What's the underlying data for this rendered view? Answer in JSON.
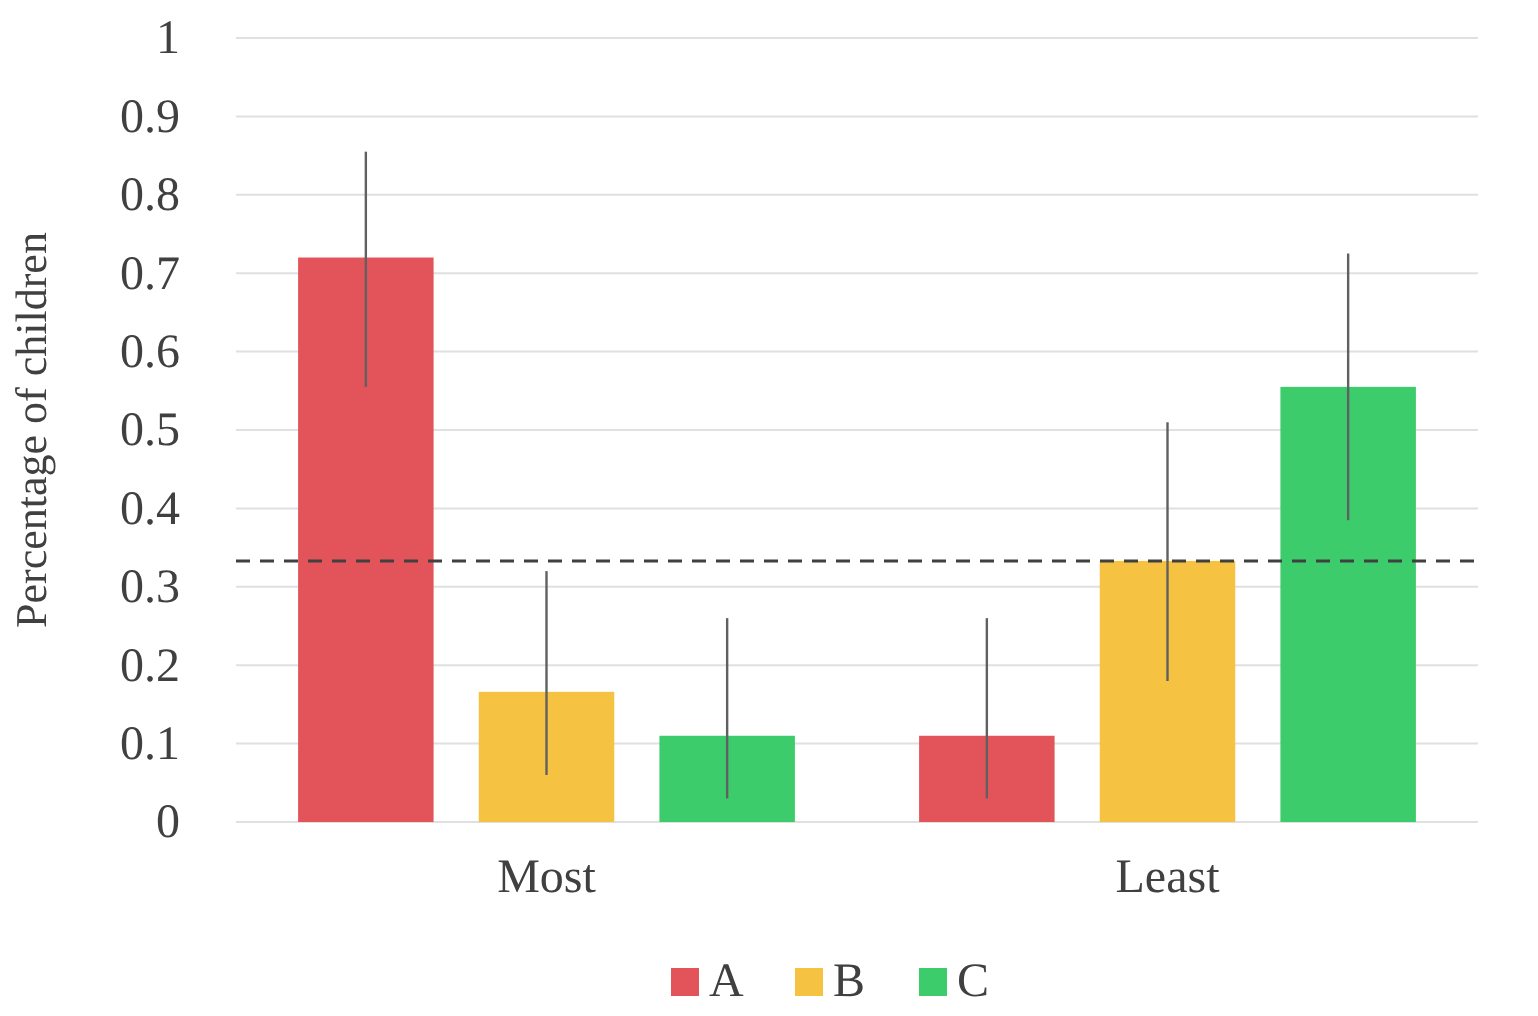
{
  "chart_data": {
    "type": "bar",
    "ylabel": "Percentage of children",
    "categories": [
      "Most",
      "Least"
    ],
    "series": [
      {
        "name": "A",
        "color": "#e3545a",
        "values": [
          0.72,
          0.11
        ],
        "errors": [
          [
            0.555,
            0.855
          ],
          [
            0.03,
            0.26
          ]
        ]
      },
      {
        "name": "B",
        "color": "#f5c242",
        "values": [
          0.166,
          0.333
        ],
        "errors": [
          [
            0.06,
            0.32
          ],
          [
            0.18,
            0.51
          ]
        ]
      },
      {
        "name": "C",
        "color": "#3ccc6c",
        "values": [
          0.11,
          0.555
        ],
        "errors": [
          [
            0.03,
            0.26
          ],
          [
            0.385,
            0.725
          ]
        ]
      }
    ],
    "ylim": [
      0,
      1
    ],
    "yticks": [
      0,
      0.1,
      0.2,
      0.3,
      0.4,
      0.5,
      0.6,
      0.7,
      0.8,
      0.9,
      1
    ],
    "ref_lines": [
      {
        "axis": "y",
        "value": 0.333,
        "label": null,
        "color": "#404040",
        "line_style": "dashed"
      }
    ],
    "grid": "y",
    "legend": "bottom"
  }
}
